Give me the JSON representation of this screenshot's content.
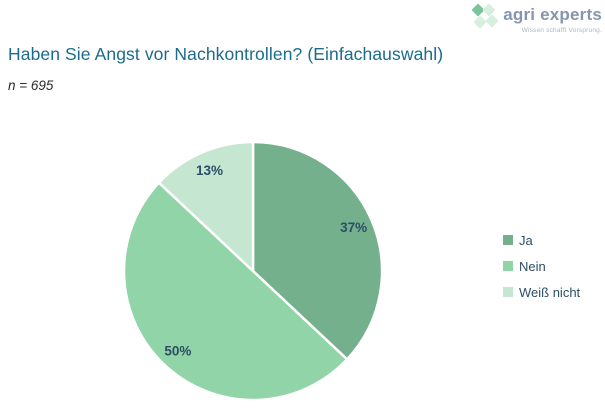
{
  "logo": {
    "name": "agri experts",
    "tagline": "Wissen schafft Vorsprung.",
    "icon": "clover-diamonds-icon",
    "text_color": "#8496ad",
    "tagline_color": "#a9b6c6",
    "icon_colors": [
      "#7cc49c",
      "#d6efdf"
    ]
  },
  "header": {
    "title": "Haben Sie Angst vor Nachkontrollen? (Einfachauswahl)",
    "title_color": "#1a6b8e",
    "sample_size": "n = 695"
  },
  "chart_data": {
    "type": "pie",
    "title": "Haben Sie Angst vor Nachkontrollen? (Einfachauswahl)",
    "sample_size": 695,
    "categories": [
      "Ja",
      "Nein",
      "Weiß nicht"
    ],
    "values": [
      37,
      50,
      13
    ],
    "unit": "%",
    "labels": [
      "37%",
      "50%",
      "13%"
    ],
    "colors": [
      "#74b08c",
      "#90d4a8",
      "#c5e6d0"
    ],
    "label_color": "#2b4e66",
    "start_angle_deg": 0,
    "direction": "clockwise",
    "separator_color": "#ffffff",
    "legend_position": "right"
  },
  "legend": {
    "items": [
      {
        "label": "Ja",
        "color": "#74b08c"
      },
      {
        "label": "Nein",
        "color": "#90d4a8"
      },
      {
        "label": "Weiß nicht",
        "color": "#c5e6d0"
      }
    ],
    "text_color": "#2b4e66"
  }
}
